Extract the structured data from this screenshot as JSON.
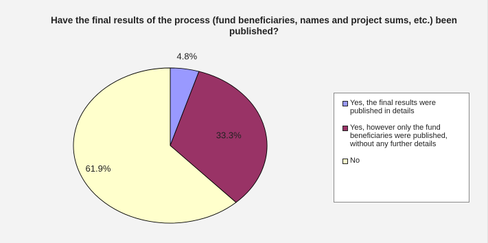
{
  "chart_data": {
    "type": "pie",
    "title": "Have the final results of the process (fund beneficiaries, names and project sums, etc.) been published?",
    "series": [
      {
        "name": "Yes, the final results were published in details",
        "value": 4.8,
        "label": "4.8%",
        "color": "#9999ff"
      },
      {
        "name": "Yes, however only the fund beneficiaries were published, without any further details",
        "value": 33.3,
        "label": "33.3%",
        "color": "#993366"
      },
      {
        "name": "No",
        "value": 61.9,
        "label": "61.9%",
        "color": "#ffffcc"
      }
    ],
    "legend_position": "right",
    "start_angle": "top",
    "direction": "clockwise"
  }
}
